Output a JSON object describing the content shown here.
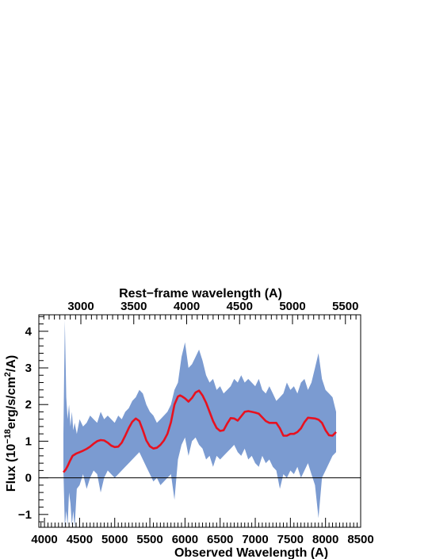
{
  "chart_data": {
    "type": "line",
    "xlabel": "Observed Wavelength (A)",
    "ylabel_main": "Flux (10",
    "ylabel_exp1": "−18",
    "ylabel_mid": "erg/s/cm",
    "ylabel_exp2": "2",
    "ylabel_end": "/A)",
    "x2label": "Rest−frame wavelength (A)",
    "xlim": [
      3920,
      8500
    ],
    "ylim": [
      -1.35,
      4.45
    ],
    "x_ticks": [
      4000,
      4500,
      5000,
      5500,
      6000,
      6500,
      7000,
      7500,
      8000,
      8500
    ],
    "y_ticks": [
      -1,
      0,
      1,
      2,
      3,
      4
    ],
    "x2_ticks": [
      3000,
      3500,
      4000,
      4500,
      5000,
      5500
    ],
    "x2_scale": 1.506,
    "colors": {
      "band": "#7b9bd1",
      "model": "#e8111f",
      "axis": "#000000"
    },
    "series": [
      {
        "kind": "band",
        "x": [
          4270,
          4290,
          4310,
          4330,
          4350,
          4370,
          4390,
          4410,
          4430,
          4460,
          4500,
          4550,
          4600,
          4650,
          4700,
          4750,
          4800,
          4850,
          4900,
          4950,
          5000,
          5050,
          5100,
          5150,
          5200,
          5250,
          5300,
          5350,
          5400,
          5450,
          5500,
          5550,
          5600,
          5650,
          5700,
          5750,
          5800,
          5850,
          5900,
          5950,
          6000,
          6050,
          6100,
          6150,
          6200,
          6250,
          6300,
          6350,
          6400,
          6450,
          6500,
          6550,
          6600,
          6650,
          6700,
          6750,
          6800,
          6850,
          6900,
          6950,
          7000,
          7050,
          7100,
          7150,
          7200,
          7250,
          7300,
          7350,
          7400,
          7450,
          7500,
          7550,
          7600,
          7650,
          7700,
          7750,
          7800,
          7850,
          7900,
          7950,
          8000,
          8050,
          8100,
          8150
        ],
        "upper": [
          1.2,
          4.3,
          2.2,
          1.6,
          2.0,
          1.4,
          1.8,
          1.3,
          1.5,
          1.2,
          1.6,
          1.4,
          1.5,
          1.7,
          1.6,
          1.5,
          1.8,
          1.6,
          1.7,
          1.6,
          1.5,
          1.7,
          1.6,
          1.8,
          1.9,
          2.1,
          2.2,
          2.4,
          2.3,
          2.0,
          1.8,
          1.7,
          1.5,
          1.6,
          1.7,
          1.8,
          2.0,
          2.4,
          2.6,
          3.3,
          3.7,
          3.0,
          3.1,
          3.3,
          3.5,
          3.2,
          2.8,
          2.6,
          2.7,
          2.4,
          2.5,
          2.3,
          2.4,
          2.5,
          2.7,
          2.6,
          2.8,
          2.6,
          2.7,
          2.6,
          2.5,
          2.7,
          2.4,
          2.3,
          2.5,
          2.3,
          2.1,
          2.2,
          2.3,
          2.6,
          2.4,
          2.5,
          2.3,
          2.6,
          2.7,
          2.4,
          2.6,
          3.0,
          3.4,
          2.7,
          2.4,
          2.3,
          2.2,
          1.8
        ],
        "lower": [
          0.2,
          -1.35,
          -0.9,
          -1.3,
          -0.4,
          -0.7,
          -1.3,
          -0.9,
          -1.35,
          -0.3,
          -0.2,
          0.1,
          -0.3,
          0.0,
          0.2,
          0.1,
          -0.4,
          0.0,
          0.2,
          0.1,
          0.0,
          0.1,
          0.2,
          0.3,
          0.4,
          0.5,
          0.6,
          0.7,
          0.5,
          0.3,
          0.1,
          -0.1,
          0.0,
          -0.2,
          -0.1,
          0.0,
          0.1,
          -0.6,
          0.5,
          0.9,
          1.1,
          0.6,
          1.0,
          1.1,
          0.9,
          0.8,
          0.5,
          0.6,
          0.3,
          0.6,
          0.5,
          0.6,
          0.7,
          0.8,
          0.9,
          0.7,
          0.6,
          0.8,
          0.5,
          0.6,
          0.4,
          0.3,
          0.6,
          0.4,
          0.5,
          0.3,
          0.2,
          -0.3,
          0.1,
          0.0,
          0.2,
          0.1,
          0.3,
          0.0,
          0.2,
          0.4,
          0.1,
          -0.2,
          -1.1,
          0.0,
          0.2,
          0.4,
          0.6,
          0.7
        ]
      },
      {
        "kind": "line",
        "x": [
          4270,
          4300,
          4330,
          4360,
          4400,
          4450,
          4500,
          4550,
          4600,
          4650,
          4700,
          4750,
          4800,
          4850,
          4900,
          4950,
          5000,
          5050,
          5100,
          5150,
          5200,
          5250,
          5300,
          5350,
          5400,
          5450,
          5500,
          5550,
          5600,
          5650,
          5700,
          5750,
          5800,
          5850,
          5900,
          5930,
          5960,
          6000,
          6050,
          6100,
          6150,
          6200,
          6250,
          6300,
          6350,
          6400,
          6450,
          6500,
          6550,
          6600,
          6650,
          6700,
          6750,
          6800,
          6850,
          6900,
          6950,
          7000,
          7050,
          7100,
          7150,
          7200,
          7250,
          7300,
          7350,
          7400,
          7450,
          7500,
          7550,
          7600,
          7650,
          7700,
          7750,
          7800,
          7850,
          7900,
          7950,
          8000,
          8050,
          8100,
          8150
        ],
        "values": [
          0.15,
          0.22,
          0.32,
          0.45,
          0.6,
          0.66,
          0.7,
          0.74,
          0.79,
          0.85,
          0.93,
          1.0,
          1.03,
          1.02,
          0.96,
          0.88,
          0.84,
          0.85,
          0.96,
          1.15,
          1.36,
          1.53,
          1.62,
          1.55,
          1.3,
          1.02,
          0.86,
          0.8,
          0.82,
          0.9,
          1.02,
          1.2,
          1.52,
          2.0,
          2.22,
          2.25,
          2.22,
          2.17,
          2.08,
          2.18,
          2.33,
          2.38,
          2.25,
          2.05,
          1.8,
          1.55,
          1.36,
          1.28,
          1.3,
          1.48,
          1.63,
          1.62,
          1.56,
          1.68,
          1.8,
          1.82,
          1.8,
          1.78,
          1.75,
          1.65,
          1.55,
          1.5,
          1.5,
          1.5,
          1.35,
          1.15,
          1.15,
          1.2,
          1.2,
          1.25,
          1.35,
          1.52,
          1.64,
          1.63,
          1.62,
          1.59,
          1.5,
          1.3,
          1.16,
          1.15,
          1.25
        ]
      }
    ]
  }
}
